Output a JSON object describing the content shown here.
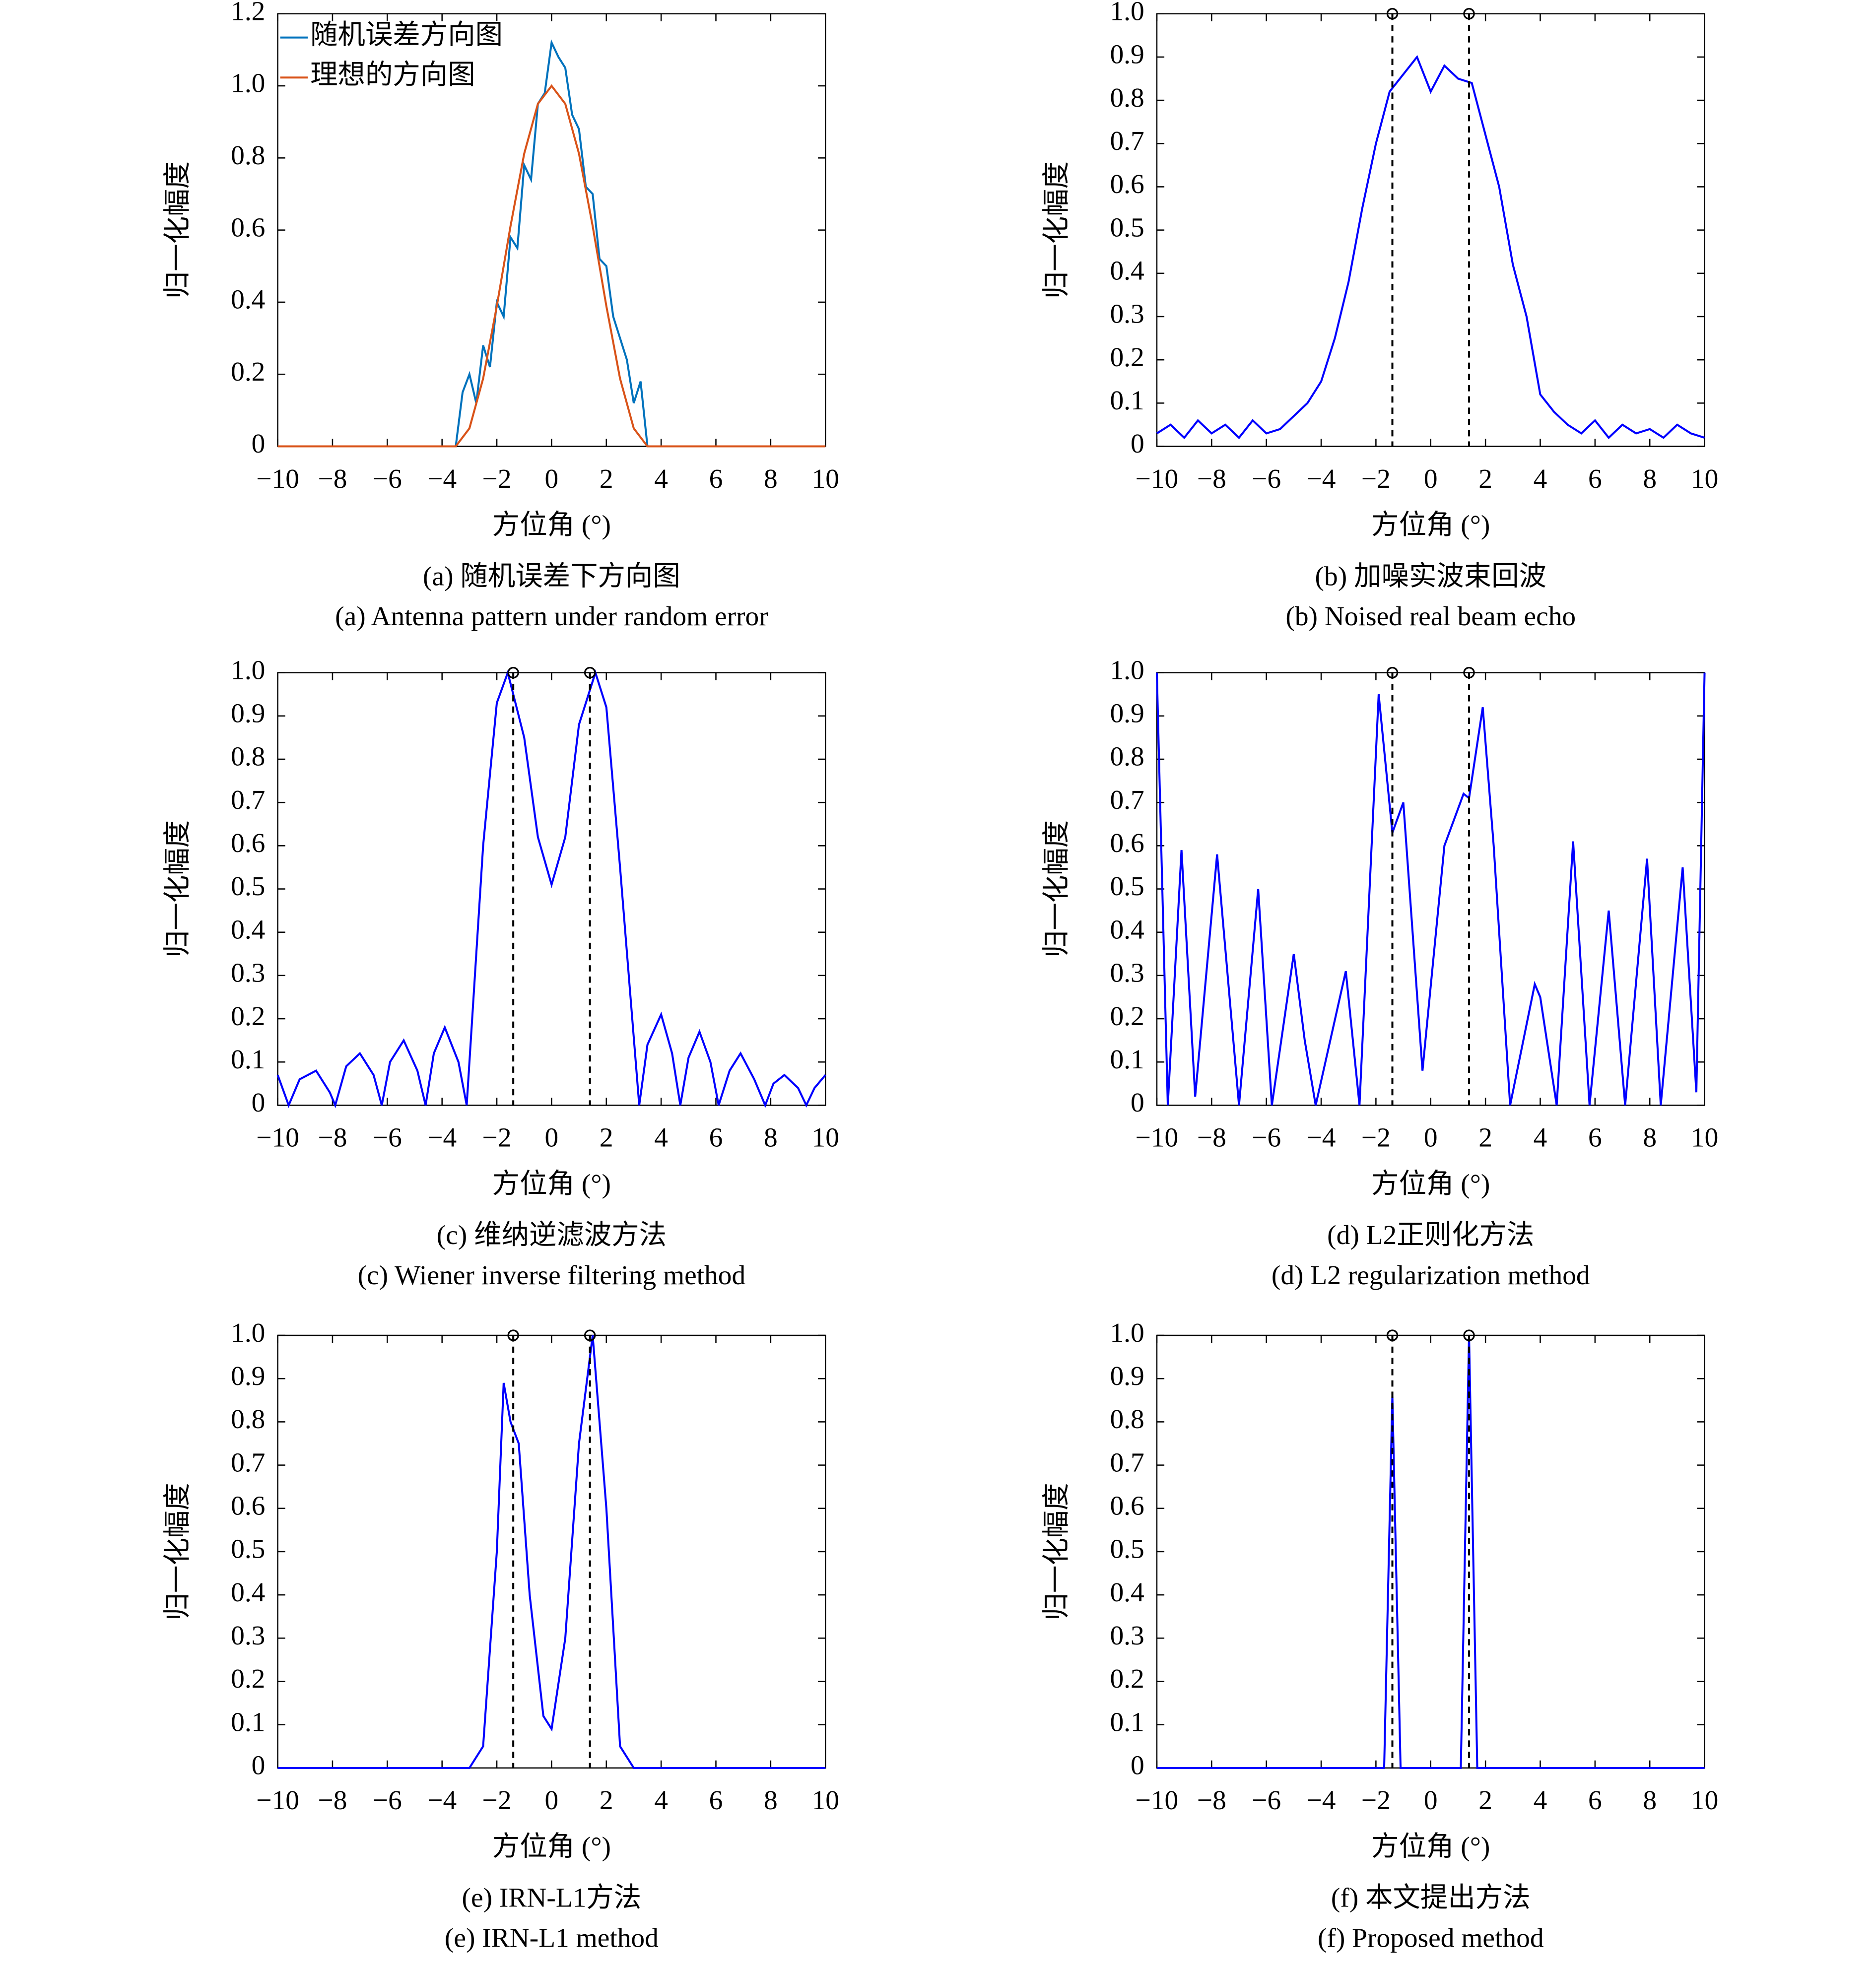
{
  "chart_data": [
    {
      "type": "line",
      "caption": "(a) 随机误差下方向图",
      "caption_en": "(a) Antenna pattern under random error",
      "xlabel": "方位角 (°)",
      "ylabel": "归一化幅度",
      "xlim": [
        -10,
        10
      ],
      "ylim": [
        0,
        1.2
      ],
      "xticks": [
        {
          "value": -10,
          "label": "−10"
        },
        {
          "value": -8,
          "label": "−8"
        },
        {
          "value": -6,
          "label": "−6"
        },
        {
          "value": -4,
          "label": "−4"
        },
        {
          "value": -2,
          "label": "−2"
        },
        0,
        2,
        4,
        6,
        8,
        10
      ],
      "yticks": [
        0,
        0.2,
        0.4,
        0.6,
        0.8,
        {
          "value": 1,
          "label": "1.0"
        },
        1.2
      ],
      "legend": "upper left",
      "series": [
        {
          "name": "随机误差方向图",
          "color": "#0072bd",
          "x": [
            -10,
            -3.5,
            -3.25,
            -3,
            -2.75,
            -2.5,
            -2.25,
            -2,
            -1.75,
            -1.5,
            -1.25,
            -1,
            -0.75,
            -0.5,
            -0.25,
            0,
            0.25,
            0.5,
            0.75,
            1,
            1.25,
            1.5,
            1.75,
            2,
            2.25,
            2.5,
            2.75,
            3,
            3.25,
            3.5,
            10
          ],
          "values": [
            0,
            0,
            0.15,
            0.2,
            0.12,
            0.28,
            0.22,
            0.4,
            0.36,
            0.58,
            0.55,
            0.78,
            0.74,
            0.95,
            0.98,
            1.12,
            1.08,
            1.05,
            0.92,
            0.88,
            0.72,
            0.7,
            0.52,
            0.5,
            0.36,
            0.3,
            0.24,
            0.12,
            0.18,
            0,
            0
          ]
        },
        {
          "name": "理想的方向图",
          "color": "#d95319",
          "x": [
            -10,
            -3.5,
            -3,
            -2.5,
            -2,
            -1.5,
            -1,
            -0.5,
            0,
            0.5,
            1,
            1.5,
            2,
            2.5,
            3,
            3.5,
            10
          ],
          "values": [
            0,
            0,
            0.05,
            0.188,
            0.389,
            0.611,
            0.812,
            0.95,
            1,
            0.95,
            0.812,
            0.611,
            0.389,
            0.188,
            0.05,
            0,
            0
          ]
        }
      ]
    },
    {
      "type": "line",
      "caption": "(b) 加噪实波束回波",
      "caption_en": "(b) Noised real beam echo",
      "xlabel": "方位角 (°)",
      "ylabel": "归一化幅度",
      "xlim": [
        -10,
        10
      ],
      "ylim": [
        0,
        1
      ],
      "xticks": [
        {
          "value": -10,
          "label": "−10"
        },
        {
          "value": -8,
          "label": "−8"
        },
        {
          "value": -6,
          "label": "−6"
        },
        {
          "value": -4,
          "label": "−4"
        },
        {
          "value": -2,
          "label": "−2"
        },
        0,
        2,
        4,
        6,
        8,
        10
      ],
      "yticks": [
        0,
        0.1,
        0.2,
        0.3,
        0.4,
        0.5,
        0.6,
        0.7,
        0.8,
        0.9,
        {
          "value": 1,
          "label": "1.0"
        }
      ],
      "targets": [
        -1.4,
        1.4
      ],
      "series": [
        {
          "color": "#0000ff",
          "x": [
            -10,
            -9.5,
            -9,
            -8.5,
            -8,
            -7.5,
            -7,
            -6.5,
            -6,
            -5.5,
            -5,
            -4.5,
            -4,
            -3.5,
            -3,
            -2.5,
            -2,
            -1.5,
            -1,
            -0.5,
            0,
            0.5,
            1,
            1.5,
            2,
            2.5,
            3,
            3.5,
            4,
            4.5,
            5,
            5.5,
            6,
            6.5,
            7,
            7.5,
            8,
            8.5,
            9,
            9.5,
            10
          ],
          "values": [
            0.03,
            0.05,
            0.02,
            0.06,
            0.03,
            0.05,
            0.02,
            0.06,
            0.03,
            0.04,
            0.07,
            0.1,
            0.15,
            0.25,
            0.38,
            0.55,
            0.7,
            0.82,
            0.86,
            0.9,
            0.82,
            0.88,
            0.85,
            0.84,
            0.72,
            0.6,
            0.42,
            0.3,
            0.12,
            0.08,
            0.05,
            0.03,
            0.06,
            0.02,
            0.05,
            0.03,
            0.04,
            0.02,
            0.05,
            0.03,
            0.02
          ]
        }
      ]
    },
    {
      "type": "line",
      "caption": "(c) 维纳逆滤波方法",
      "caption_en": "(c) Wiener inverse filtering method",
      "xlabel": "方位角 (°)",
      "ylabel": "归一化幅度",
      "xlim": [
        -10,
        10
      ],
      "ylim": [
        0,
        1
      ],
      "xticks": [
        {
          "value": -10,
          "label": "−10"
        },
        {
          "value": -8,
          "label": "−8"
        },
        {
          "value": -6,
          "label": "−6"
        },
        {
          "value": -4,
          "label": "−4"
        },
        {
          "value": -2,
          "label": "−2"
        },
        0,
        2,
        4,
        6,
        8,
        10
      ],
      "yticks": [
        0,
        0.1,
        0.2,
        0.3,
        0.4,
        0.5,
        0.6,
        0.7,
        0.8,
        0.9,
        {
          "value": 1,
          "label": "1.0"
        }
      ],
      "targets": [
        -1.4,
        1.4
      ],
      "series": [
        {
          "color": "#0000ff",
          "x": [
            -10,
            -9.6,
            -9.2,
            -8.6,
            -8.1,
            -7.9,
            -7.5,
            -7,
            -6.5,
            -6.2,
            -5.9,
            -5.4,
            -4.9,
            -4.6,
            -4.3,
            -3.9,
            -3.4,
            -3.1,
            -2.5,
            -2,
            -1.6,
            -1,
            -0.5,
            0,
            0.5,
            1,
            1.6,
            2,
            2.5,
            3.2,
            3.5,
            4,
            4.4,
            4.7,
            5,
            5.4,
            5.8,
            6.1,
            6.5,
            6.9,
            7.4,
            7.8,
            8.1,
            8.5,
            9,
            9.3,
            9.6,
            10
          ],
          "values": [
            0.07,
            0,
            0.06,
            0.08,
            0.03,
            0,
            0.09,
            0.12,
            0.07,
            0,
            0.1,
            0.15,
            0.08,
            0,
            0.12,
            0.18,
            0.1,
            0,
            0.6,
            0.93,
            1,
            0.85,
            0.62,
            0.51,
            0.62,
            0.88,
            1,
            0.92,
            0.55,
            0,
            0.14,
            0.21,
            0.12,
            0,
            0.11,
            0.17,
            0.1,
            0,
            0.08,
            0.12,
            0.06,
            0,
            0.05,
            0.07,
            0.04,
            0,
            0.04,
            0.07
          ]
        }
      ]
    },
    {
      "type": "line",
      "caption": "(d) L2正则化方法",
      "caption_en": "(d) L2 regularization method",
      "xlabel": "方位角 (°)",
      "ylabel": "归一化幅度",
      "xlim": [
        -10,
        10
      ],
      "ylim": [
        0,
        1
      ],
      "xticks": [
        {
          "value": -10,
          "label": "−10"
        },
        {
          "value": -8,
          "label": "−8"
        },
        {
          "value": -6,
          "label": "−6"
        },
        {
          "value": -4,
          "label": "−4"
        },
        {
          "value": -2,
          "label": "−2"
        },
        0,
        2,
        4,
        6,
        8,
        10
      ],
      "yticks": [
        0,
        0.1,
        0.2,
        0.3,
        0.4,
        0.5,
        0.6,
        0.7,
        0.8,
        0.9,
        {
          "value": 1,
          "label": "1.0"
        }
      ],
      "targets": [
        -1.4,
        1.4
      ],
      "series": [
        {
          "color": "#0000ff",
          "x": [
            -10,
            -9.6,
            -9.1,
            -8.6,
            -7.8,
            -7,
            -6.3,
            -5.8,
            -5,
            -4.6,
            -4.2,
            -3.1,
            -2.6,
            -1.9,
            -1.4,
            -1,
            -0.3,
            0.5,
            1.2,
            1.4,
            1.9,
            2.3,
            2.9,
            3.8,
            4,
            4.6,
            5.2,
            5.8,
            6.5,
            7.1,
            7.9,
            8.4,
            9.2,
            9.7,
            10
          ],
          "values": [
            1,
            0,
            0.59,
            0.02,
            0.58,
            0,
            0.5,
            0,
            0.35,
            0.15,
            0,
            0.31,
            0,
            0.95,
            0.63,
            0.7,
            0.08,
            0.6,
            0.72,
            0.71,
            0.92,
            0.6,
            0,
            0.28,
            0.25,
            0,
            0.61,
            0,
            0.45,
            0,
            0.57,
            0,
            0.55,
            0.03,
            1
          ]
        }
      ]
    },
    {
      "type": "line",
      "caption": "(e) IRN-L1方法",
      "caption_en": "(e) IRN-L1 method",
      "xlabel": "方位角 (°)",
      "ylabel": "归一化幅度",
      "xlim": [
        -10,
        10
      ],
      "ylim": [
        0,
        1
      ],
      "xticks": [
        {
          "value": -10,
          "label": "−10"
        },
        {
          "value": -8,
          "label": "−8"
        },
        {
          "value": -6,
          "label": "−6"
        },
        {
          "value": -4,
          "label": "−4"
        },
        {
          "value": -2,
          "label": "−2"
        },
        0,
        2,
        4,
        6,
        8,
        10
      ],
      "yticks": [
        0,
        0.1,
        0.2,
        0.3,
        0.4,
        0.5,
        0.6,
        0.7,
        0.8,
        0.9,
        {
          "value": 1,
          "label": "1.0"
        }
      ],
      "targets": [
        -1.4,
        1.4
      ],
      "series": [
        {
          "color": "#0000ff",
          "x": [
            -10,
            -3,
            -2.5,
            -2,
            -1.75,
            -1.5,
            -1.2,
            -0.8,
            -0.3,
            0,
            0.5,
            1,
            1.5,
            2,
            2.5,
            3,
            10
          ],
          "values": [
            0,
            0,
            0.05,
            0.5,
            0.89,
            0.8,
            0.75,
            0.4,
            0.12,
            0.09,
            0.3,
            0.75,
            1,
            0.6,
            0.05,
            0,
            0
          ]
        }
      ]
    },
    {
      "type": "line",
      "caption": "(f) 本文提出方法",
      "caption_en": "(f) Proposed method",
      "xlabel": "方位角 (°)",
      "ylabel": "归一化幅度",
      "xlim": [
        -10,
        10
      ],
      "ylim": [
        0,
        1
      ],
      "xticks": [
        {
          "value": -10,
          "label": "−10"
        },
        {
          "value": -8,
          "label": "−8"
        },
        {
          "value": -6,
          "label": "−6"
        },
        {
          "value": -4,
          "label": "−4"
        },
        {
          "value": -2,
          "label": "−2"
        },
        0,
        2,
        4,
        6,
        8,
        10
      ],
      "yticks": [
        0,
        0.1,
        0.2,
        0.3,
        0.4,
        0.5,
        0.6,
        0.7,
        0.8,
        0.9,
        {
          "value": 1,
          "label": "1.0"
        }
      ],
      "targets": [
        -1.4,
        1.4
      ],
      "series": [
        {
          "color": "#0000ff",
          "x": [
            -10,
            -1.7,
            -1.4,
            -1.1,
            1.1,
            1.4,
            1.7,
            10
          ],
          "values": [
            0,
            0,
            0.86,
            0,
            0,
            1,
            0,
            0
          ]
        }
      ]
    }
  ]
}
